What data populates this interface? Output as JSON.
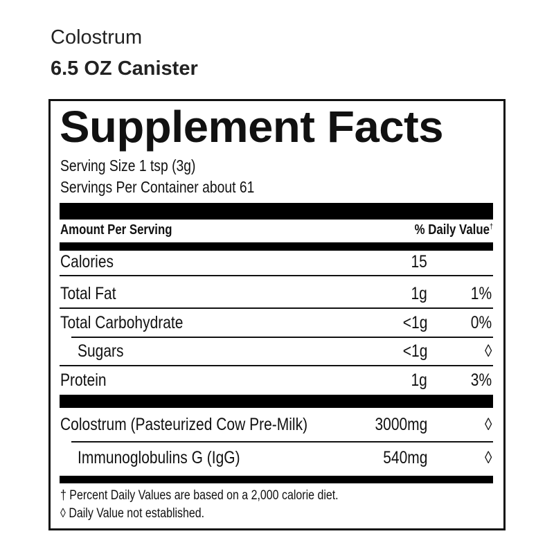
{
  "header": {
    "product_name": "Colostrum",
    "product_size": "6.5 OZ Canister"
  },
  "panel": {
    "title": "Supplement Facts",
    "serving_size": "Serving Size 1 tsp (3g)",
    "servings_per_container": "Servings Per Container about 61",
    "col_amount_header": "Amount Per Serving",
    "col_dv_header": "% Daily Value",
    "col_dv_mark": "†",
    "nutrients": [
      {
        "name": "Calories",
        "amount": "15",
        "dv": ""
      },
      {
        "name": "Total Fat",
        "amount": "1g",
        "dv": "1%"
      },
      {
        "name": "Total Carbohydrate",
        "amount": "<1g",
        "dv": "0%"
      },
      {
        "name": "Sugars",
        "amount": "<1g",
        "dv": "◊"
      },
      {
        "name": "Protein",
        "amount": "1g",
        "dv": "3%"
      }
    ],
    "ingredients": [
      {
        "name": "Colostrum (Pasteurized Cow Pre-Milk)",
        "amount": "3000mg",
        "dv": "◊"
      },
      {
        "name": "Immunoglobulins G (IgG)",
        "amount": "540mg",
        "dv": "◊"
      }
    ],
    "footnotes": [
      "† Percent Daily Values are based on a 2,000 calorie diet.",
      "◊ Daily Value not established."
    ]
  }
}
